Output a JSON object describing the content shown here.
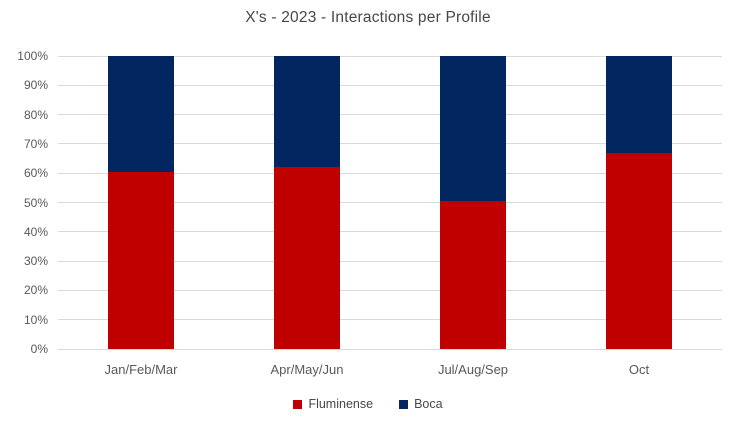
{
  "title": "X's - 2023 - Interactions per Profile",
  "colors": {
    "fluminense_red": "#c00000",
    "boca_navy": "#02265f",
    "gridline_gray": "#d9d9d9",
    "axis_text_gray": "#595959",
    "title_gray": "#474747"
  },
  "legend": {
    "items": [
      {
        "label": "Fluminense",
        "color": "#c00000"
      },
      {
        "label": "Boca",
        "color": "#02265f"
      }
    ],
    "position": "bottom-center"
  },
  "chart_data": {
    "type": "bar",
    "stacked": true,
    "percent_stacked": true,
    "title": "X's - 2023 - Interactions per Profile",
    "categories": [
      "Jan/Feb/Mar",
      "Apr/May/Jun",
      "Jul/Aug/Sep",
      "Oct"
    ],
    "series": [
      {
        "name": "Fluminense",
        "color": "#c00000",
        "values": [
          60.5,
          62,
          50.5,
          67
        ]
      },
      {
        "name": "Boca",
        "color": "#02265f",
        "values": [
          39.5,
          38,
          49.5,
          33
        ]
      }
    ],
    "xlabel": "",
    "ylabel": "",
    "ylim": [
      0,
      100
    ],
    "y_ticks": [
      "0%",
      "10%",
      "20%",
      "30%",
      "40%",
      "50%",
      "60%",
      "70%",
      "80%",
      "90%",
      "100%"
    ],
    "grid": true,
    "gridline_interval_pct": 10,
    "legend_position": "bottom"
  }
}
